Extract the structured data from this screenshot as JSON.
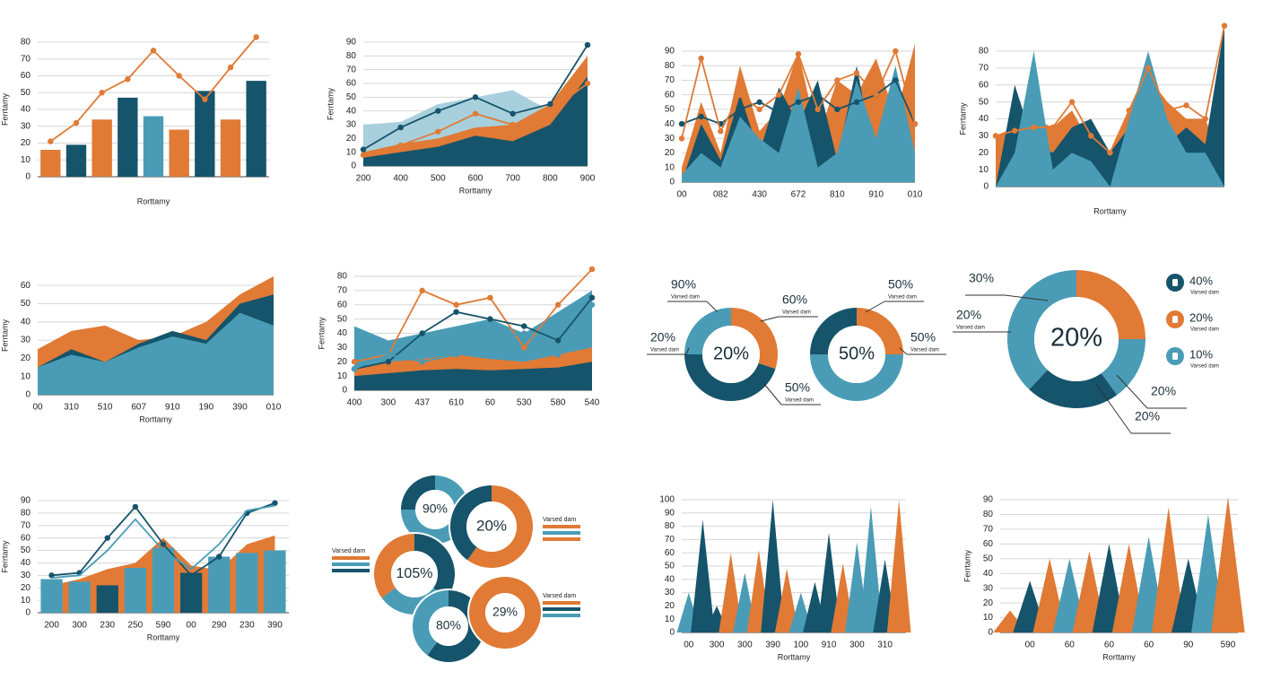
{
  "chart_data": [
    {
      "type": "bar",
      "x_label": "Rorttamy",
      "y_label": "Ferrtamy",
      "grid": true,
      "categories": [
        null,
        null,
        null,
        null,
        null,
        null,
        null,
        null,
        null
      ],
      "ylim": [
        0,
        80
      ],
      "yticks": [
        0,
        10,
        20,
        30,
        40,
        50,
        60,
        70,
        80
      ],
      "series": [
        {
          "type": "bar",
          "colors": [
            "#e07a35",
            "#15546b",
            "#e07a35",
            "#15546b",
            "#4a9cb6",
            "#e07a35",
            "#15546b",
            "#e07a35",
            "#15546b"
          ],
          "values": [
            16,
            19,
            34,
            47,
            36,
            28,
            51,
            34,
            57
          ]
        },
        {
          "type": "line",
          "color": "#e07a35",
          "markers": true,
          "values": [
            21,
            32,
            50,
            58,
            75,
            60,
            46,
            65,
            83
          ]
        }
      ]
    },
    {
      "type": "area",
      "x_label": "Rorttamy",
      "y_label": "Ferrtamy",
      "grid": true,
      "categories": [
        "200",
        "400",
        "500",
        "600",
        "700",
        "800",
        "900"
      ],
      "ylim": [
        0,
        90
      ],
      "yticks": [
        0,
        10,
        20,
        30,
        40,
        50,
        60,
        70,
        80,
        90
      ],
      "series": [
        {
          "type": "area",
          "color": "#a8d0dc",
          "values": [
            30,
            32,
            45,
            50,
            55,
            40,
            35
          ]
        },
        {
          "type": "area",
          "color": "#e07a35",
          "values": [
            10,
            16,
            20,
            28,
            30,
            45,
            80
          ]
        },
        {
          "type": "area",
          "color": "#15546b",
          "values": [
            6,
            10,
            14,
            22,
            18,
            30,
            65
          ]
        },
        {
          "type": "line",
          "color": "#e07a35",
          "markers": true,
          "values": [
            8,
            15,
            25,
            38,
            30,
            40,
            60
          ]
        },
        {
          "type": "line",
          "color": "#15546b",
          "markers": true,
          "values": [
            12,
            28,
            40,
            50,
            38,
            45,
            88
          ]
        }
      ]
    },
    {
      "type": "area",
      "grid": true,
      "categories": [
        "00",
        null,
        "082",
        null,
        "430",
        null,
        "672",
        null,
        "810",
        null,
        "910",
        null,
        "010"
      ],
      "ylim": [
        0,
        90
      ],
      "yticks": [
        0,
        10,
        20,
        30,
        40,
        50,
        60,
        70,
        80,
        90
      ],
      "series": [
        {
          "type": "area",
          "color": "#e07a35",
          "values": [
            10,
            55,
            20,
            80,
            35,
            50,
            90,
            30,
            70,
            60,
            85,
            45,
            95
          ]
        },
        {
          "type": "area",
          "color": "#15546b",
          "values": [
            0,
            40,
            15,
            60,
            20,
            65,
            40,
            70,
            15,
            80,
            10,
            60,
            0
          ]
        },
        {
          "type": "area",
          "color": "#4a9cb6",
          "values": [
            5,
            20,
            10,
            45,
            30,
            20,
            65,
            10,
            20,
            70,
            30,
            80,
            20
          ]
        },
        {
          "type": "line",
          "color": "#15546b",
          "markers": true,
          "values": [
            40,
            45,
            40,
            50,
            55,
            48,
            55,
            60,
            50,
            55,
            60,
            70,
            40
          ]
        },
        {
          "type": "line",
          "color": "#e07a35",
          "markers": true,
          "values": [
            30,
            85,
            35,
            60,
            50,
            60,
            88,
            50,
            70,
            75,
            60,
            90,
            40
          ]
        }
      ]
    },
    {
      "type": "area",
      "x_label": "Rorttamy",
      "y_label": "Ferrtamy",
      "grid": true,
      "categories": [
        null,
        null,
        null,
        null,
        null,
        null,
        null,
        null,
        null,
        null,
        null,
        null,
        null
      ],
      "ylim": [
        0,
        80
      ],
      "yticks": [
        0,
        10,
        20,
        30,
        40,
        50,
        60,
        70,
        80
      ],
      "series": [
        {
          "type": "area",
          "color": "#e07a35",
          "values": [
            30,
            35,
            40,
            35,
            45,
            25,
            20,
            45,
            65,
            50,
            40,
            40,
            10
          ]
        },
        {
          "type": "area",
          "color": "#15546b",
          "values": [
            0,
            60,
            25,
            20,
            35,
            40,
            20,
            35,
            55,
            25,
            35,
            25,
            95
          ]
        },
        {
          "type": "area",
          "color": "#4a9cb6",
          "values": [
            0,
            20,
            80,
            10,
            20,
            15,
            0,
            40,
            80,
            40,
            20,
            20,
            0
          ]
        },
        {
          "type": "line",
          "color": "#e07a35",
          "markers": true,
          "values": [
            30,
            33,
            35,
            35,
            50,
            30,
            20,
            45,
            70,
            45,
            48,
            40,
            95
          ]
        }
      ]
    },
    {
      "type": "area",
      "x_label": "Rorttamy",
      "y_label": "Ferrtamy",
      "grid": true,
      "categories": [
        "00",
        "310",
        "510",
        "607",
        "910",
        "190",
        "390",
        "010"
      ],
      "ylim": [
        0,
        65
      ],
      "yticks": [
        0,
        10,
        20,
        30,
        40,
        50,
        60
      ],
      "series": [
        {
          "type": "area",
          "color": "#e07a35",
          "values": [
            25,
            35,
            38,
            30,
            32,
            40,
            55,
            65
          ]
        },
        {
          "type": "area",
          "color": "#15546b",
          "values": [
            15,
            25,
            18,
            28,
            35,
            30,
            50,
            55
          ]
        },
        {
          "type": "area",
          "color": "#4a9cb6",
          "values": [
            15,
            22,
            18,
            26,
            32,
            28,
            45,
            38
          ]
        }
      ]
    },
    {
      "type": "area",
      "y_label": "Ferrtamy",
      "grid": true,
      "categories": [
        "400",
        "300",
        "437",
        "610",
        "60",
        "530",
        "580",
        "540"
      ],
      "ylim": [
        0,
        80
      ],
      "yticks": [
        0,
        10,
        20,
        30,
        40,
        50,
        60,
        70,
        80
      ],
      "series": [
        {
          "type": "area",
          "color": "#4a9cb6",
          "values": [
            45,
            35,
            40,
            45,
            50,
            40,
            55,
            70
          ]
        },
        {
          "type": "area",
          "color": "#e07a35",
          "values": [
            15,
            20,
            22,
            25,
            22,
            20,
            25,
            30
          ]
        },
        {
          "type": "area",
          "color": "#15546b",
          "values": [
            10,
            12,
            14,
            15,
            14,
            15,
            16,
            20
          ]
        },
        {
          "type": "line",
          "color": "#e07a35",
          "markers": true,
          "values": [
            20,
            25,
            70,
            60,
            65,
            30,
            60,
            85
          ]
        },
        {
          "type": "line",
          "color": "#15546b",
          "markers": true,
          "values": [
            15,
            20,
            40,
            55,
            50,
            45,
            35,
            65
          ]
        },
        {
          "type": "line",
          "color": "#4a9cb6",
          "markers": true,
          "values": [
            15,
            25,
            20,
            25,
            35,
            40,
            25,
            60
          ]
        }
      ]
    },
    {
      "type": "donut",
      "rings": [
        {
          "center_label": "20%",
          "values": [
            30,
            45,
            25
          ],
          "colors": [
            "#e07a35",
            "#15546b",
            "#4a9cb6"
          ]
        },
        {
          "center_label": "50%",
          "values": [
            25,
            50,
            25
          ],
          "colors": [
            "#e07a35",
            "#4a9cb6",
            "#15546b"
          ]
        }
      ],
      "callouts": [
        {
          "label": "90%",
          "note": "Varsed dam"
        },
        {
          "label": "60%",
          "note": "Varsed dam"
        },
        {
          "label": "20%",
          "note": "Varsed dam"
        },
        {
          "label": "50%",
          "note": "Varsed dam"
        },
        {
          "label": "50%",
          "note": "Varsed dam"
        },
        {
          "label": "50%",
          "note": "Varsed dam"
        }
      ]
    },
    {
      "type": "donut",
      "rings": [
        {
          "center_label": "20%",
          "values": [
            25,
            15,
            22,
            38
          ],
          "colors": [
            "#e07a35",
            "#4a9cb6",
            "#15546b",
            "#4a9cb6"
          ]
        }
      ],
      "callouts": [
        {
          "label": "30%"
        },
        {
          "label": "20%",
          "note": "Varsed dam"
        },
        {
          "label": "20%"
        },
        {
          "label": "20%"
        }
      ],
      "legend": [
        {
          "label": "40%",
          "note": "Varsed dam",
          "color": "#15546b"
        },
        {
          "label": "20%",
          "note": "Varsed dam",
          "color": "#e07a35"
        },
        {
          "label": "10%",
          "note": "Varsed dam",
          "color": "#4a9cb6"
        }
      ]
    },
    {
      "type": "bar",
      "x_label": "Rorttamy",
      "y_label": "Ferrtamy",
      "grid": true,
      "categories": [
        "200",
        "300",
        "230",
        "250",
        "590",
        "00",
        "290",
        "230",
        "390"
      ],
      "ylim": [
        0,
        90
      ],
      "yticks": [
        0,
        10,
        20,
        30,
        40,
        50,
        60,
        70,
        80,
        90
      ],
      "series": [
        {
          "type": "area",
          "color": "#e07a35",
          "values": [
            22,
            27,
            35,
            40,
            60,
            38,
            34,
            55,
            62
          ]
        },
        {
          "type": "bar",
          "colors": [
            "#4a9cb6",
            "#4a9cb6",
            "#15546b",
            "#4a9cb6",
            "#4a9cb6",
            "#15546b",
            "#4a9cb6",
            "#4a9cb6",
            "#4a9cb6"
          ],
          "values": [
            27,
            25,
            22,
            36,
            52,
            32,
            45,
            48,
            50
          ]
        },
        {
          "type": "line",
          "color": "#15546b",
          "markers": true,
          "values": [
            30,
            32,
            60,
            85,
            55,
            30,
            45,
            80,
            88
          ]
        },
        {
          "type": "line",
          "color": "#4a9cb6",
          "values": [
            28,
            30,
            50,
            75,
            50,
            35,
            55,
            82,
            86
          ]
        }
      ]
    },
    {
      "type": "donut",
      "rings": [
        {
          "center_label": "90%",
          "values": [
            75,
            25
          ],
          "colors": [
            "#4a9cb6",
            "#15546b"
          ]
        },
        {
          "center_label": "20%",
          "values": [
            60,
            40
          ],
          "colors": [
            "#e07a35",
            "#15546b"
          ]
        },
        {
          "center_label": "105%",
          "values": [
            35,
            30,
            35
          ],
          "colors": [
            "#15546b",
            "#4a9cb6",
            "#e07a35"
          ]
        },
        {
          "center_label": "80%",
          "values": [
            60,
            40
          ],
          "colors": [
            "#15546b",
            "#4a9cb6"
          ]
        },
        {
          "center_label": "29%",
          "values": [
            100
          ],
          "colors": [
            "#e07a35"
          ]
        }
      ],
      "legend": [
        {
          "label": "Varsed dam",
          "colors": [
            "#e07a35",
            "#4a9cb6",
            "#15546b"
          ]
        },
        {
          "label": "Varsed dam",
          "colors": [
            "#e07a35",
            "#4a9cb6",
            "#e07a35"
          ]
        },
        {
          "label": "Varsed dam",
          "colors": [
            "#e07a35",
            "#15546b",
            "#4a9cb6"
          ]
        }
      ]
    },
    {
      "type": "spike",
      "x_label": "Rorttamy",
      "grid": true,
      "categories": [
        "00",
        null,
        "300",
        null,
        "300",
        null,
        "390",
        null,
        "100",
        null,
        "910",
        null,
        "300",
        null,
        "310",
        null
      ],
      "ylim": [
        0,
        100
      ],
      "yticks": [
        0,
        10,
        20,
        30,
        40,
        50,
        60,
        70,
        80,
        90,
        100
      ],
      "series": [
        {
          "type": "spike",
          "colors": [
            "#4a9cb6",
            "#15546b",
            "#15546b",
            "#e07a35",
            "#4a9cb6",
            "#e07a35",
            "#15546b",
            "#e07a35",
            "#4a9cb6",
            "#15546b",
            "#15546b",
            "#e07a35",
            "#4a9cb6",
            "#4a9cb6",
            "#15546b",
            "#e07a35"
          ],
          "values": [
            30,
            85,
            20,
            60,
            45,
            62,
            100,
            48,
            30,
            38,
            75,
            52,
            68,
            95,
            55,
            100
          ]
        }
      ]
    },
    {
      "type": "spike",
      "x_label": "Rorttamy",
      "y_label": "Ferrtamy",
      "grid": true,
      "categories": [
        null,
        "00",
        null,
        "60",
        null,
        "60",
        null,
        "60",
        null,
        "90",
        null,
        "590"
      ],
      "ylim": [
        0,
        90
      ],
      "yticks": [
        0,
        10,
        20,
        30,
        40,
        50,
        60,
        70,
        80,
        90
      ],
      "series": [
        {
          "type": "spike",
          "colors": [
            "#e07a35",
            "#15546b",
            "#e07a35",
            "#4a9cb6",
            "#e07a35",
            "#15546b",
            "#e07a35",
            "#4a9cb6",
            "#e07a35",
            "#15546b",
            "#4a9cb6",
            "#e07a35"
          ],
          "values": [
            15,
            35,
            50,
            50,
            55,
            60,
            60,
            65,
            85,
            50,
            80,
            92
          ]
        }
      ]
    }
  ]
}
